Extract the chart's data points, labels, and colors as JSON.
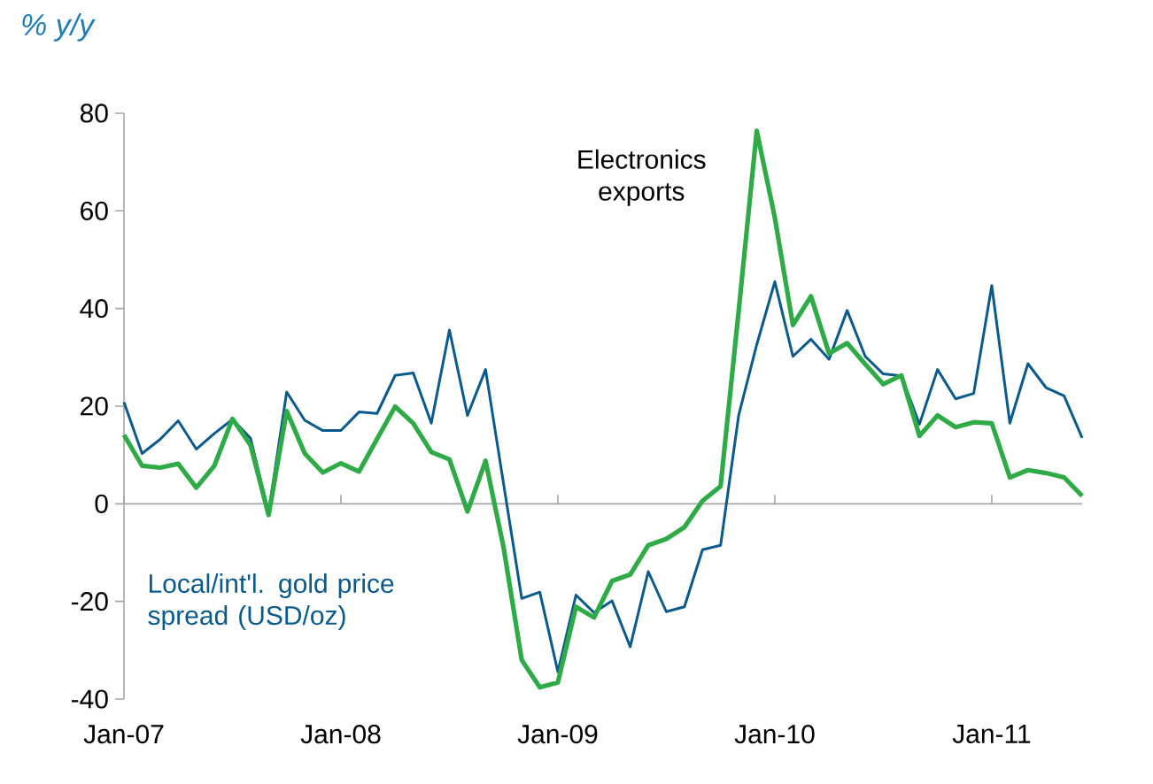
{
  "chart_data": {
    "type": "line",
    "annotations": [
      "% y/y"
    ],
    "x": [
      "2007-01",
      "2007-02",
      "2007-03",
      "2007-04",
      "2007-05",
      "2007-06",
      "2007-07",
      "2007-08",
      "2007-09",
      "2007-10",
      "2007-11",
      "2007-12",
      "2008-01",
      "2008-02",
      "2008-03",
      "2008-04",
      "2008-05",
      "2008-06",
      "2008-07",
      "2008-08",
      "2008-09",
      "2008-10",
      "2008-11",
      "2008-12",
      "2009-01",
      "2009-02",
      "2009-03",
      "2009-04",
      "2009-05",
      "2009-06",
      "2009-07",
      "2009-08",
      "2009-09",
      "2009-10",
      "2009-11",
      "2009-12",
      "2010-01",
      "2010-02",
      "2010-03",
      "2010-04",
      "2010-05",
      "2010-06",
      "2010-07",
      "2010-08",
      "2010-09",
      "2010-10",
      "2010-11",
      "2010-12",
      "2011-01",
      "2011-02",
      "2011-03",
      "2011-04",
      "2011-05",
      "2011-06"
    ],
    "series": [
      {
        "name": "Local/int'l. gold price spread (USD/oz)",
        "color": "#0b5a8c",
        "values": [
          20.8,
          10.3,
          13.2,
          17,
          11.2,
          14.4,
          17.3,
          13.4,
          -1.8,
          22.9,
          17.1,
          15,
          15,
          18.8,
          18.5,
          26.3,
          26.8,
          16.5,
          35.6,
          18.1,
          27.5,
          4,
          -19.4,
          -18.1,
          -34.4,
          -18.7,
          -22.3,
          -19.9,
          -29.3,
          -13.9,
          -22.1,
          -21.1,
          -9.4,
          -8.5,
          18.1,
          32.6,
          45.5,
          30.2,
          33.7,
          29.6,
          39.6,
          30.2,
          26.6,
          26.2,
          16.3,
          27.5,
          21.5,
          22.6,
          44.7,
          16.5,
          28.7,
          23.8,
          22.1,
          13.5
        ]
      },
      {
        "name": "Electronics exports",
        "color": "#2eaa47",
        "values": [
          14.1,
          7.8,
          7.4,
          8.2,
          3.3,
          7.8,
          17.4,
          12,
          -2.3,
          19,
          10.3,
          6.4,
          8.3,
          6.6,
          13.3,
          19.9,
          16.5,
          10.6,
          9.1,
          -1.6,
          8.8,
          -9,
          -32,
          -37.6,
          -36.6,
          -21.1,
          -23.3,
          -15.8,
          -14.5,
          -8.5,
          -7.2,
          -4.8,
          0.6,
          3.6,
          39.5,
          76.4,
          58.6,
          36.6,
          42.5,
          30.8,
          32.9,
          28.6,
          24.5,
          26.3,
          13.9,
          18.1,
          15.7,
          16.7,
          16.5,
          5.4,
          6.9,
          6.3,
          5.4,
          1.6
        ]
      }
    ],
    "xlim": [
      "2007-01",
      "2011-06"
    ],
    "xticks": [
      {
        "value": "2007-01",
        "label": "Jan-07"
      },
      {
        "value": "2008-01",
        "label": "Jan-08"
      },
      {
        "value": "2009-01",
        "label": "Jan-09"
      },
      {
        "value": "2010-01",
        "label": "Jan-10"
      },
      {
        "value": "2011-01",
        "label": "Jan-11"
      }
    ],
    "ylim": [
      -40,
      80
    ],
    "yticks": [
      -40,
      -20,
      0,
      20,
      40,
      60,
      80
    ]
  }
}
